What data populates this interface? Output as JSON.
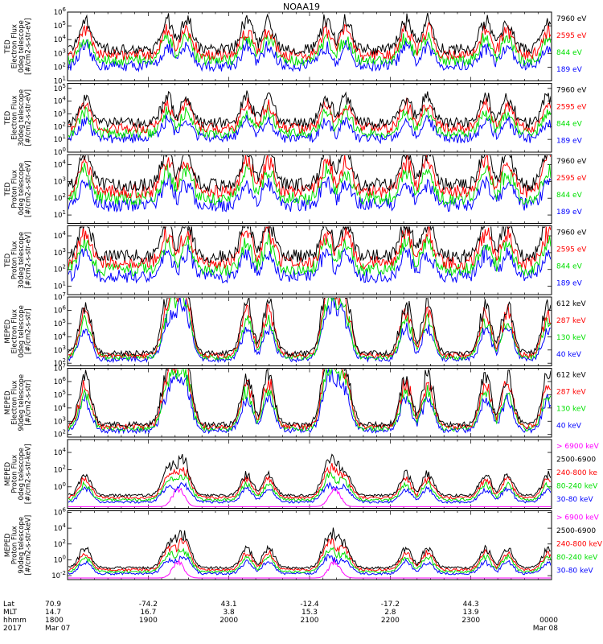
{
  "title": "NOAA19",
  "colors": {
    "black": "#000000",
    "red": "#ff0000",
    "green": "#00e000",
    "blue": "#0000ff",
    "magenta": "#ff00ff"
  },
  "chart_data": [
    {
      "type": "line",
      "instrument": "TED",
      "ylabel": [
        "TED",
        "Electron Flux",
        "0deg telescope",
        "[#/cm2-s-str-eV]"
      ],
      "yticks": [
        "10^1",
        "10^2",
        "10^3",
        "10^4",
        "10^5",
        "10^6"
      ],
      "ylim": [
        1,
        6
      ],
      "legend": [
        "7960 eV",
        "2595 eV",
        "844 eV",
        "189 eV"
      ],
      "profile": "ted_e"
    },
    {
      "type": "line",
      "instrument": "TED",
      "ylabel": [
        "TED",
        "Electron Flux",
        "30deg telescope",
        "[#/cm2-s-str-eV]"
      ],
      "yticks": [
        "10^0",
        "10^1",
        "10^2",
        "10^3",
        "10^4",
        "10^5"
      ],
      "ylim": [
        0,
        5.4
      ],
      "legend": [
        "7960 eV",
        "2595 eV",
        "844 eV",
        "189 eV"
      ],
      "profile": "ted_e"
    },
    {
      "type": "line",
      "instrument": "TED",
      "ylabel": [
        "TED",
        "Proton Flux",
        "0deg telescope",
        "[#/cm2-s-str-eV]"
      ],
      "yticks": [
        "10^1",
        "10^2",
        "10^3",
        "10^4"
      ],
      "ylim": [
        0.5,
        4.6
      ],
      "legend": [
        "7960 eV",
        "2595 eV",
        "844 eV",
        "189 eV"
      ],
      "profile": "ted_p"
    },
    {
      "type": "line",
      "instrument": "TED",
      "ylabel": [
        "TED",
        "Proton Flux",
        "30deg telescope",
        "[#/cm2-s-str-eV]"
      ],
      "yticks": [
        "10^1",
        "10^2",
        "10^3",
        "10^4"
      ],
      "ylim": [
        0.5,
        4.6
      ],
      "legend": [
        "7960 eV",
        "2595 eV",
        "844 eV",
        "189 eV"
      ],
      "profile": "ted_p30"
    },
    {
      "type": "line",
      "instrument": "MEPED",
      "ylabel": [
        "MEPED",
        "Electron Flux",
        "0deg telescope",
        "[#/cm2-s-str]"
      ],
      "yticks": [
        "10^2",
        "10^3",
        "10^4",
        "10^5",
        "10^6",
        "10^7"
      ],
      "ylim": [
        1.8,
        7
      ],
      "legend": [
        "612 keV",
        "287 keV",
        "130 keV",
        "40 keV"
      ],
      "profile": "meped_e"
    },
    {
      "type": "line",
      "instrument": "MEPED",
      "ylabel": [
        "MEPED",
        "Electron Flux",
        "90deg telescope",
        "[#/cm2-s-str]"
      ],
      "yticks": [
        "10^2",
        "10^3",
        "10^4",
        "10^5",
        "10^6",
        "10^7"
      ],
      "ylim": [
        1.8,
        7
      ],
      "legend": [
        "612 keV",
        "287 keV",
        "130 keV",
        "40 keV"
      ],
      "profile": "meped_e90"
    },
    {
      "type": "line",
      "instrument": "MEPED",
      "ylabel": [
        "MEPED",
        "Proton Flux",
        "0deg telescope",
        "[#/cm2-s-str-keV]"
      ],
      "yticks": [
        "10^0",
        "10^2",
        "10^4"
      ],
      "ylim": [
        -2.5,
        5.5
      ],
      "legend": [
        "> 6900 keV",
        "2500-6900",
        "240-800 ke",
        "80-240 keV",
        "30-80 keV"
      ],
      "profile": "meped_p"
    },
    {
      "type": "line",
      "instrument": "MEPED",
      "ylabel": [
        "MEPED",
        "Proton Flux",
        "90deg telescope",
        "[#/cm2-s-str-keV]"
      ],
      "yticks": [
        "10^-2",
        "10^0",
        "10^2",
        "10^4",
        "10^6"
      ],
      "ylim": [
        -2.5,
        6.2
      ],
      "legend": [
        "> 6900 keV",
        "2500-6900",
        "240-800 keV",
        "80-240 keV",
        "30-80 keV"
      ],
      "profile": "meped_p90"
    }
  ],
  "xaxis": {
    "row_labels": [
      "Lat",
      "MLT",
      "hhmm",
      "2017"
    ],
    "ticks": [
      {
        "frac": 0.0,
        "lat": "70.9",
        "mlt": "14.7",
        "hhmm": "1800",
        "date": "Mar 07"
      },
      {
        "frac": 0.1667,
        "lat": "-74.2",
        "mlt": "16.7",
        "hhmm": "1900",
        "date": ""
      },
      {
        "frac": 0.3333,
        "lat": "43.1",
        "mlt": "3.8",
        "hhmm": "2000",
        "date": ""
      },
      {
        "frac": 0.5,
        "lat": "-12.4",
        "mlt": "15.3",
        "hhmm": "2100",
        "date": ""
      },
      {
        "frac": 0.6667,
        "lat": "-17.2",
        "mlt": "2.8",
        "hhmm": "2200",
        "date": ""
      },
      {
        "frac": 0.8333,
        "lat": "44.3",
        "mlt": "13.9",
        "hhmm": "2300",
        "date": ""
      },
      {
        "frac": 1.0,
        "lat": "",
        "mlt": "",
        "hhmm": "0000",
        "date": "Mar 08"
      }
    ]
  }
}
